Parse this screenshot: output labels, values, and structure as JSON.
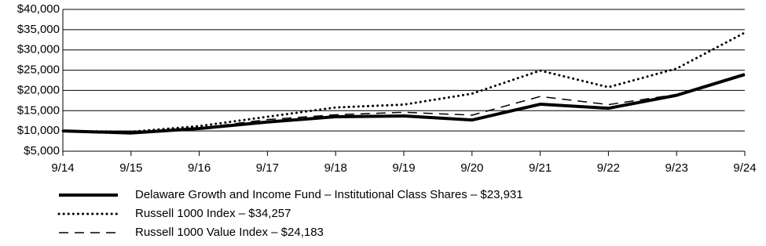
{
  "chart_data": {
    "type": "line",
    "categories": [
      "9/14",
      "9/15",
      "9/16",
      "9/17",
      "9/18",
      "9/19",
      "9/20",
      "9/21",
      "9/22",
      "9/23",
      "9/24"
    ],
    "series": [
      {
        "name": "Delaware Growth and Income Fund – Institutional Class Shares – $23,931",
        "color": "#000000",
        "style": "solid",
        "values": [
          10000,
          9500,
          10600,
          12200,
          13500,
          13700,
          12700,
          16600,
          15600,
          18800,
          23931
        ]
      },
      {
        "name": "Russell 1000 Index – $34,257",
        "color": "#000000",
        "style": "dotted",
        "values": [
          10000,
          9800,
          11200,
          13500,
          15800,
          16500,
          19200,
          24900,
          20800,
          25400,
          34257
        ]
      },
      {
        "name": "Russell 1000 Value Index – $24,183",
        "color": "#000000",
        "style": "dashed",
        "values": [
          10000,
          9600,
          10700,
          12800,
          14000,
          14600,
          13900,
          18500,
          16500,
          19000,
          24183
        ]
      }
    ],
    "ylim": [
      5000,
      40000
    ],
    "yticks": [
      {
        "value": 5000,
        "label": "$5,000"
      },
      {
        "value": 10000,
        "label": "$10,000"
      },
      {
        "value": 15000,
        "label": "$15,000"
      },
      {
        "value": 20000,
        "label": "$20,000"
      },
      {
        "value": 25000,
        "label": "$25,000"
      },
      {
        "value": 30000,
        "label": "$30,000"
      },
      {
        "value": 35000,
        "label": "$35,000"
      },
      {
        "value": 40000,
        "label": "$40,000"
      }
    ],
    "grid": true
  }
}
